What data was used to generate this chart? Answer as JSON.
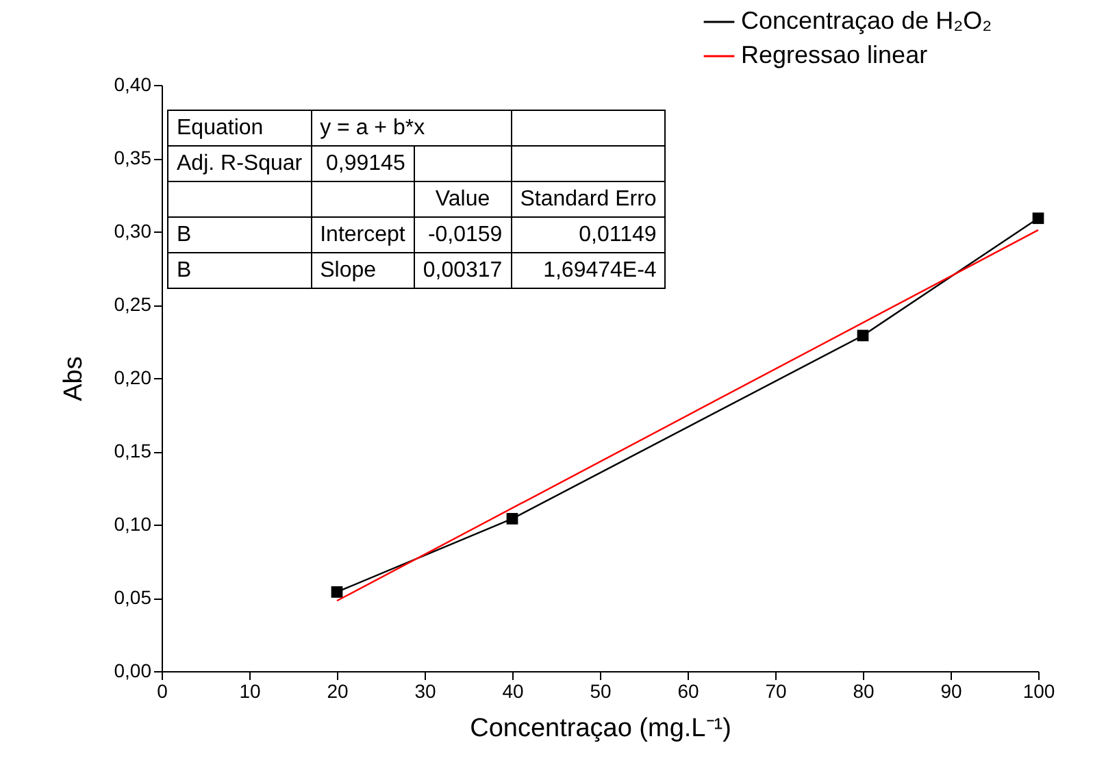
{
  "chart_data": {
    "type": "line",
    "xlabel": "Concentraçao (mg.L⁻¹)",
    "ylabel": "Abs",
    "xlim": [
      0,
      100
    ],
    "xticks": [
      0,
      10,
      20,
      30,
      40,
      50,
      60,
      70,
      80,
      90,
      100
    ],
    "ylim": [
      0,
      0.4
    ],
    "yticks": [
      {
        "value": 0,
        "label": "0,00"
      },
      {
        "value": 0.05,
        "label": "0,05"
      },
      {
        "value": 0.1,
        "label": "0,10"
      },
      {
        "value": 0.15,
        "label": "0,15"
      },
      {
        "value": 0.2,
        "label": "0,20"
      },
      {
        "value": 0.25,
        "label": "0,25"
      },
      {
        "value": 0.3,
        "label": "0,30"
      },
      {
        "value": 0.35,
        "label": "0,35"
      },
      {
        "value": 0.4,
        "label": "0,40"
      }
    ],
    "grid": false,
    "legend": "top right",
    "series": [
      {
        "name": "Concentraçao de H₂O₂",
        "color": "#000000",
        "marker": "square",
        "x": [
          20,
          40,
          80,
          100
        ],
        "values": [
          0.054,
          0.104,
          0.229,
          0.309
        ]
      },
      {
        "name": "Regressao linear",
        "color": "#ff0000",
        "marker": "none",
        "x": [
          20,
          100
        ],
        "values": [
          0.048,
          0.301
        ]
      }
    ],
    "annotations": [
      "Equation",
      "y = a + b*x",
      "Adj. R-Squar",
      "0,99145",
      "Value",
      "Standard Erro",
      "B",
      "Intercept",
      "-0,0159",
      "0,01149",
      "B",
      "Slope",
      "0,00317",
      "1,69474E-4"
    ]
  }
}
